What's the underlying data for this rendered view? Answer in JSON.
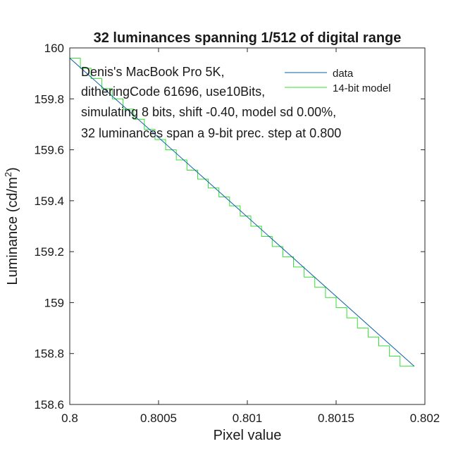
{
  "chart_data": {
    "type": "line",
    "title": "32 luminances spanning 1/512 of digital range",
    "xlabel": "Pixel value",
    "ylabel_main": "Luminance (cd/m",
    "ylabel_sup": "2",
    "ylabel_close": ")",
    "xlim": [
      0.8,
      0.802
    ],
    "ylim": [
      158.6,
      160
    ],
    "x_ticks": [
      0.8,
      0.8005,
      0.801,
      0.8015,
      0.802
    ],
    "x_tick_labels": [
      "0.8",
      "0.8005",
      "0.801",
      "0.8015",
      "0.802"
    ],
    "y_ticks": [
      158.6,
      158.8,
      159,
      159.2,
      159.4,
      159.6,
      159.8,
      160
    ],
    "y_tick_labels": [
      "158.6",
      "158.8",
      "159",
      "159.2",
      "159.4",
      "159.6",
      "159.8",
      "160"
    ],
    "grid": false,
    "legend_position": "top-right",
    "annotation": [
      "Denis's MacBook Pro 5K,",
      "ditheringCode 61696, use10Bits,",
      "simulating 8 bits, shift -0.40, model sd 0.00%,",
      "32 luminances span a 9-bit prec. step at 0.800"
    ],
    "series": [
      {
        "name": "data",
        "color": "#0b5ea8",
        "style": "line",
        "x": [
          0.8,
          0.80194
        ],
        "y": [
          159.96,
          158.75
        ]
      },
      {
        "name": "14-bit model",
        "color": "#33e033",
        "style": "staircase",
        "step_x": [
          0.8,
          0.80006,
          0.80012,
          0.80018,
          0.80024,
          0.8003,
          0.80036,
          0.80042,
          0.80048,
          0.80054,
          0.8006,
          0.80066,
          0.80072,
          0.80078,
          0.80084,
          0.8009,
          0.80096,
          0.80102,
          0.80108,
          0.80114,
          0.8012,
          0.80126,
          0.80132,
          0.80138,
          0.80144,
          0.8015,
          0.80156,
          0.80162,
          0.80168,
          0.80174,
          0.8018,
          0.80186,
          0.80194
        ],
        "step_y": [
          159.96,
          159.92,
          159.88,
          159.84,
          159.8,
          159.76,
          159.72,
          159.68,
          159.64,
          159.6,
          159.56,
          159.52,
          159.485,
          159.45,
          159.415,
          159.38,
          159.34,
          159.3,
          159.26,
          159.22,
          159.18,
          159.14,
          159.1,
          159.06,
          159.02,
          158.98,
          158.94,
          158.9,
          158.865,
          158.83,
          158.79,
          158.75
        ]
      }
    ]
  }
}
